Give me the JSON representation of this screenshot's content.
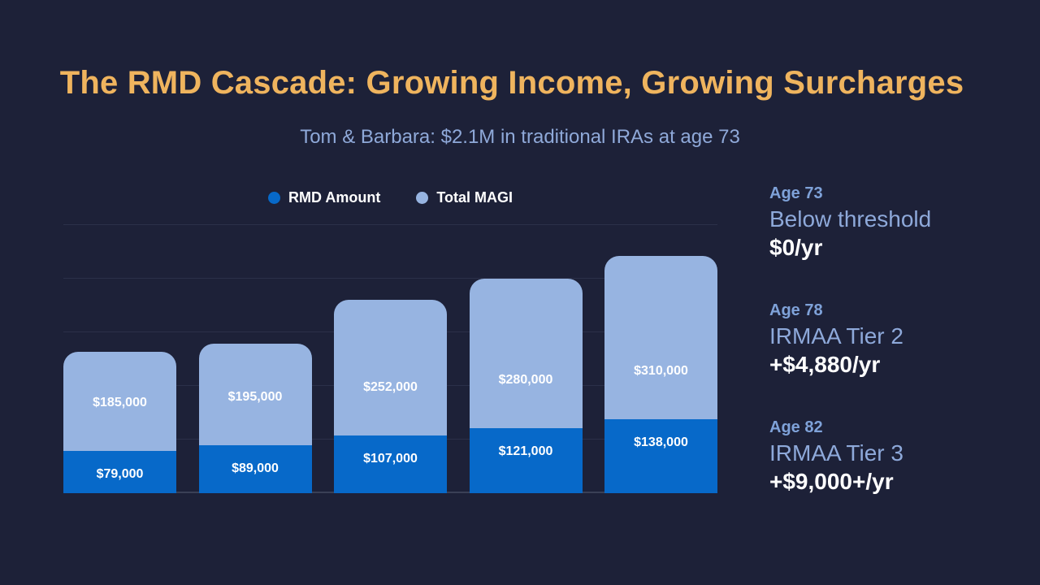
{
  "header": {
    "title": "The RMD Cascade: Growing Income, Growing Surcharges",
    "subtitle": "Tom & Barbara: $2.1M in traditional IRAs at age 73"
  },
  "colors": {
    "background": "#1D2138",
    "title_text": "#EFB45E",
    "subtitle_text": "#8FA9D9",
    "rmd_bar": "#0769C9",
    "magi_bar": "#97B4E1",
    "gridline": "#2B3049",
    "age_label": "#7FA2D9",
    "tier_label": "#8EA9DA",
    "value_text": "#FFFFFF"
  },
  "legend": {
    "items": [
      {
        "label": "RMD Amount",
        "color": "#0769C9"
      },
      {
        "label": "Total MAGI",
        "color": "#97B4E1"
      }
    ]
  },
  "chart_data": {
    "type": "bar",
    "subtype": "overlay-segment-bar",
    "title": "",
    "xlabel": "",
    "ylabel": "",
    "x_tick_labels": [],
    "ylim": [
      0,
      350000
    ],
    "gridline_step": 70000,
    "grid": true,
    "legend_position": "top-center",
    "value_labels_shown": true,
    "series": [
      {
        "name": "RMD Amount",
        "color": "#0769C9",
        "values": [
          79000,
          89000,
          107000,
          121000,
          138000
        ],
        "labels": [
          "$79,000",
          "$89,000",
          "$107,000",
          "$121,000",
          "$138,000"
        ]
      },
      {
        "name": "Total MAGI",
        "color": "#97B4E1",
        "values": [
          185000,
          195000,
          252000,
          280000,
          310000
        ],
        "labels": [
          "$185,000",
          "$195,000",
          "$252,000",
          "$280,000",
          "$310,000"
        ]
      }
    ]
  },
  "sidebar": {
    "items": [
      {
        "age": "Age 73",
        "tier": "Below threshold",
        "amount": "$0/yr"
      },
      {
        "age": "Age 78",
        "tier": "IRMAA Tier 2",
        "amount": "+$4,880/yr"
      },
      {
        "age": "Age 82",
        "tier": "IRMAA Tier 3",
        "amount": "+$9,000+/yr"
      }
    ]
  }
}
